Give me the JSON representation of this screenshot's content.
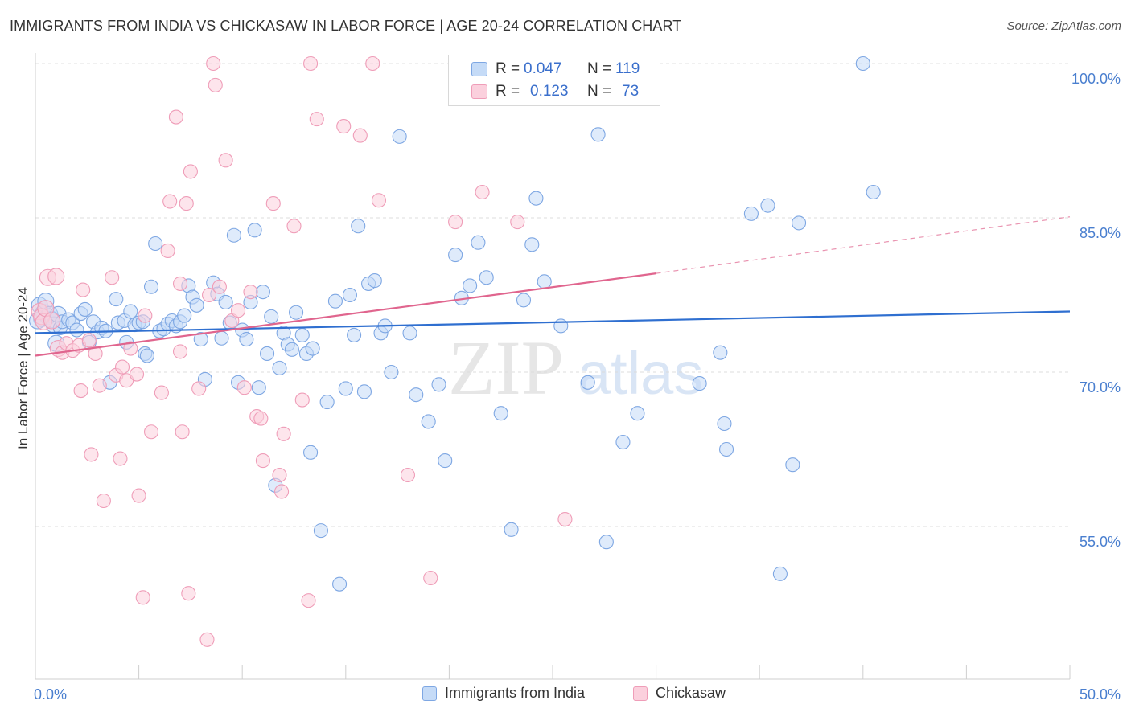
{
  "title": "IMMIGRANTS FROM INDIA VS CHICKASAW IN LABOR FORCE | AGE 20-24 CORRELATION CHART",
  "source": "Source: ZipAtlas.com",
  "watermark": {
    "part1": "ZIP",
    "part2": "atlas"
  },
  "stats": {
    "r_label": "R =",
    "n_label": "N =",
    "rows": [
      {
        "r": "0.047",
        "n": "119",
        "color": "#a9c7f0",
        "border": "#6f9ee0"
      },
      {
        "r": "0.123",
        "n": "73",
        "color": "#f7b8cc",
        "border": "#ec8fae"
      }
    ]
  },
  "legend": [
    {
      "label": "Immigrants from India",
      "fill": "#c5dbf7",
      "border": "#7ea7e3"
    },
    {
      "label": "Chickasaw",
      "fill": "#fbd0dd",
      "border": "#ef9db8"
    }
  ],
  "chart_data": {
    "type": "scatter",
    "title": "IMMIGRANTS FROM INDIA VS CHICKASAW IN LABOR FORCE | AGE 20-24 CORRELATION CHART",
    "xlabel": "",
    "ylabel": "In Labor Force | Age 20-24",
    "xlim": [
      0,
      50
    ],
    "ylim": [
      39,
      102
    ],
    "x_tick_labels": [
      {
        "value": 0,
        "label": "0.0%"
      },
      {
        "value": 50,
        "label": "50.0%"
      }
    ],
    "y_tick_labels": [
      {
        "value": 100,
        "label": "100.0%"
      },
      {
        "value": 85,
        "label": "85.0%"
      },
      {
        "value": 70,
        "label": "70.0%"
      },
      {
        "value": 55,
        "label": "55.0%"
      }
    ],
    "grid": "horizontal dashed",
    "series": [
      {
        "name": "Immigrants from India",
        "color": "#7ea7e3",
        "fill": "#c5dbf7",
        "trend": {
          "x": [
            0,
            50
          ],
          "y": [
            73.8,
            75.9
          ],
          "style": "solid",
          "color": "#2f6fd0"
        },
        "points": [
          [
            0.2,
            76.5
          ],
          [
            0.3,
            75.2
          ],
          [
            0.4,
            75.8
          ],
          [
            0.5,
            76.9
          ],
          [
            0.6,
            75.4
          ],
          [
            0.7,
            75.6
          ],
          [
            0.8,
            75.1
          ],
          [
            0.9,
            74.6
          ],
          [
            1.0,
            72.8
          ],
          [
            1.1,
            75.6
          ],
          [
            1.2,
            74.3
          ],
          [
            1.3,
            74.9
          ],
          [
            1.6,
            75.1
          ],
          [
            1.8,
            74.8
          ],
          [
            2.0,
            74.1
          ],
          [
            2.2,
            75.7
          ],
          [
            2.4,
            76.1
          ],
          [
            2.6,
            72.9
          ],
          [
            2.8,
            74.9
          ],
          [
            3.0,
            73.9
          ],
          [
            3.2,
            74.3
          ],
          [
            3.4,
            74.0
          ],
          [
            3.6,
            69.0
          ],
          [
            3.9,
            77.1
          ],
          [
            4.0,
            74.8
          ],
          [
            4.3,
            75.0
          ],
          [
            4.4,
            72.9
          ],
          [
            4.6,
            75.9
          ],
          [
            4.8,
            74.6
          ],
          [
            5.0,
            74.8
          ],
          [
            5.2,
            74.9
          ],
          [
            5.3,
            71.8
          ],
          [
            5.4,
            71.6
          ],
          [
            5.6,
            78.3
          ],
          [
            5.8,
            82.5
          ],
          [
            6.0,
            74.0
          ],
          [
            6.2,
            74.2
          ],
          [
            6.4,
            74.7
          ],
          [
            6.6,
            75.0
          ],
          [
            6.8,
            74.5
          ],
          [
            7.0,
            74.9
          ],
          [
            7.2,
            75.5
          ],
          [
            7.4,
            78.4
          ],
          [
            7.6,
            77.3
          ],
          [
            7.8,
            76.5
          ],
          [
            8.0,
            73.2
          ],
          [
            8.2,
            69.3
          ],
          [
            8.6,
            78.7
          ],
          [
            8.8,
            77.6
          ],
          [
            9.0,
            73.3
          ],
          [
            9.2,
            76.8
          ],
          [
            9.4,
            74.8
          ],
          [
            9.6,
            83.3
          ],
          [
            9.8,
            69.0
          ],
          [
            10.0,
            74.1
          ],
          [
            10.2,
            73.2
          ],
          [
            10.4,
            76.8
          ],
          [
            10.6,
            83.8
          ],
          [
            10.8,
            68.5
          ],
          [
            11.0,
            77.8
          ],
          [
            11.2,
            71.8
          ],
          [
            11.4,
            75.4
          ],
          [
            11.6,
            59.0
          ],
          [
            11.8,
            70.4
          ],
          [
            12.0,
            73.8
          ],
          [
            12.2,
            72.7
          ],
          [
            12.4,
            72.2
          ],
          [
            12.6,
            75.8
          ],
          [
            12.9,
            73.6
          ],
          [
            13.1,
            71.8
          ],
          [
            13.3,
            62.2
          ],
          [
            13.4,
            72.3
          ],
          [
            13.8,
            54.6
          ],
          [
            14.1,
            67.1
          ],
          [
            14.5,
            76.9
          ],
          [
            14.7,
            49.4
          ],
          [
            15.0,
            68.4
          ],
          [
            15.2,
            77.5
          ],
          [
            15.4,
            73.6
          ],
          [
            15.6,
            84.2
          ],
          [
            15.9,
            68.1
          ],
          [
            16.1,
            78.6
          ],
          [
            16.4,
            78.9
          ],
          [
            16.7,
            73.8
          ],
          [
            16.9,
            74.5
          ],
          [
            17.2,
            70.0
          ],
          [
            17.6,
            92.9
          ],
          [
            18.1,
            73.8
          ],
          [
            18.4,
            67.8
          ],
          [
            19.0,
            65.2
          ],
          [
            19.5,
            68.8
          ],
          [
            19.8,
            61.4
          ],
          [
            20.3,
            81.4
          ],
          [
            20.6,
            77.2
          ],
          [
            21.0,
            78.4
          ],
          [
            21.4,
            82.6
          ],
          [
            21.8,
            79.2
          ],
          [
            22.5,
            66.0
          ],
          [
            23.0,
            54.7
          ],
          [
            23.6,
            77.0
          ],
          [
            24.0,
            82.4
          ],
          [
            24.2,
            86.9
          ],
          [
            24.6,
            78.8
          ],
          [
            25.4,
            74.5
          ],
          [
            26.7,
            69.0
          ],
          [
            27.2,
            93.1
          ],
          [
            27.6,
            53.5
          ],
          [
            28.4,
            63.2
          ],
          [
            29.1,
            66.0
          ],
          [
            32.1,
            68.9
          ],
          [
            33.1,
            71.9
          ],
          [
            33.3,
            65.0
          ],
          [
            33.4,
            62.5
          ],
          [
            34.6,
            85.4
          ],
          [
            35.4,
            86.2
          ],
          [
            36.0,
            50.4
          ],
          [
            36.6,
            61.0
          ],
          [
            36.9,
            84.5
          ],
          [
            40.0,
            100.0
          ],
          [
            40.5,
            87.5
          ],
          [
            21.0,
            100.0
          ],
          [
            23.0,
            100.0
          ],
          [
            26.1,
            100.0
          ],
          [
            0.1,
            75.0
          ]
        ]
      },
      {
        "name": "Chickasaw",
        "color": "#ef9db8",
        "fill": "#fbd0dd",
        "trend": {
          "x": [
            0,
            30
          ],
          "y": [
            71.6,
            79.6
          ],
          "dash_x": [
            30,
            50
          ],
          "dash_y": [
            79.6,
            85.1
          ],
          "style": "solid then dashed",
          "color": "#e0658e"
        },
        "points": [
          [
            0.2,
            75.9
          ],
          [
            0.3,
            75.4
          ],
          [
            0.4,
            74.9
          ],
          [
            0.5,
            76.2
          ],
          [
            0.6,
            79.2
          ],
          [
            0.8,
            75.0
          ],
          [
            1.0,
            79.3
          ],
          [
            1.1,
            72.3
          ],
          [
            1.3,
            71.9
          ],
          [
            1.5,
            72.8
          ],
          [
            1.8,
            72.1
          ],
          [
            2.1,
            72.6
          ],
          [
            2.2,
            68.2
          ],
          [
            2.3,
            78.0
          ],
          [
            2.6,
            73.1
          ],
          [
            2.7,
            62.0
          ],
          [
            2.9,
            71.8
          ],
          [
            3.1,
            68.7
          ],
          [
            3.3,
            57.5
          ],
          [
            3.7,
            79.2
          ],
          [
            3.9,
            69.7
          ],
          [
            4.1,
            61.6
          ],
          [
            4.2,
            70.5
          ],
          [
            4.4,
            69.2
          ],
          [
            4.6,
            72.3
          ],
          [
            4.9,
            69.8
          ],
          [
            5.0,
            58.0
          ],
          [
            5.2,
            48.1
          ],
          [
            5.3,
            75.5
          ],
          [
            5.6,
            64.2
          ],
          [
            6.1,
            68.0
          ],
          [
            6.4,
            81.8
          ],
          [
            6.5,
            86.6
          ],
          [
            6.8,
            94.8
          ],
          [
            7.0,
            78.6
          ],
          [
            7.1,
            64.2
          ],
          [
            7.3,
            86.4
          ],
          [
            7.4,
            48.5
          ],
          [
            7.5,
            89.5
          ],
          [
            7.9,
            68.4
          ],
          [
            8.3,
            44.0
          ],
          [
            8.4,
            77.5
          ],
          [
            8.6,
            100.0
          ],
          [
            8.7,
            97.9
          ],
          [
            8.9,
            78.3
          ],
          [
            9.2,
            90.6
          ],
          [
            9.5,
            75.0
          ],
          [
            9.8,
            76.0
          ],
          [
            10.1,
            68.5
          ],
          [
            10.4,
            77.8
          ],
          [
            10.7,
            65.7
          ],
          [
            10.9,
            65.5
          ],
          [
            11.0,
            61.4
          ],
          [
            11.5,
            86.4
          ],
          [
            11.8,
            60.0
          ],
          [
            11.9,
            58.4
          ],
          [
            12.0,
            64.0
          ],
          [
            12.5,
            84.2
          ],
          [
            12.9,
            67.3
          ],
          [
            13.2,
            47.8
          ],
          [
            13.3,
            100.0
          ],
          [
            13.6,
            94.6
          ],
          [
            14.9,
            93.9
          ],
          [
            15.7,
            93.0
          ],
          [
            16.3,
            100.0
          ],
          [
            16.6,
            86.7
          ],
          [
            18.0,
            60.0
          ],
          [
            19.1,
            50.0
          ],
          [
            20.3,
            84.6
          ],
          [
            21.6,
            87.5
          ],
          [
            23.3,
            84.6
          ],
          [
            25.6,
            55.7
          ],
          [
            7.0,
            72.0
          ]
        ]
      }
    ]
  }
}
